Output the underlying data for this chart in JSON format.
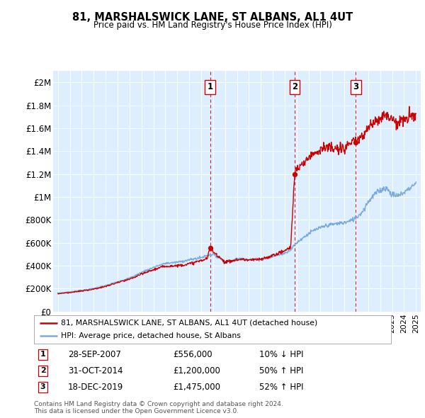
{
  "title": "81, MARSHALSWICK LANE, ST ALBANS, AL1 4UT",
  "subtitle": "Price paid vs. HM Land Registry's House Price Index (HPI)",
  "legend_label_red": "81, MARSHALSWICK LANE, ST ALBANS, AL1 4UT (detached house)",
  "legend_label_blue": "HPI: Average price, detached house, St Albans",
  "footer1": "Contains HM Land Registry data © Crown copyright and database right 2024.",
  "footer2": "This data is licensed under the Open Government Licence v3.0.",
  "transactions": [
    {
      "num": 1,
      "date": "28-SEP-2007",
      "price": "£556,000",
      "change": "10% ↓ HPI",
      "year": 2007.75
    },
    {
      "num": 2,
      "date": "31-OCT-2014",
      "price": "£1,200,000",
      "change": "50% ↑ HPI",
      "year": 2014.83
    },
    {
      "num": 3,
      "date": "18-DEC-2019",
      "price": "£1,475,000",
      "change": "52% ↑ HPI",
      "year": 2019.96
    }
  ],
  "hpi_color": "#7aaadd",
  "price_color": "#cc0000",
  "background_color": "#ddeeff",
  "yticks": [
    0,
    200000,
    400000,
    600000,
    800000,
    1000000,
    1200000,
    1400000,
    1600000,
    1800000,
    2000000
  ],
  "ytick_labels": [
    "£0",
    "£200K",
    "£400K",
    "£600K",
    "£800K",
    "£1M",
    "£1.2M",
    "£1.4M",
    "£1.6M",
    "£1.8M",
    "£2M"
  ],
  "ylim": [
    0,
    2100000
  ],
  "xlim_start": 1994.6,
  "xlim_end": 2025.4
}
